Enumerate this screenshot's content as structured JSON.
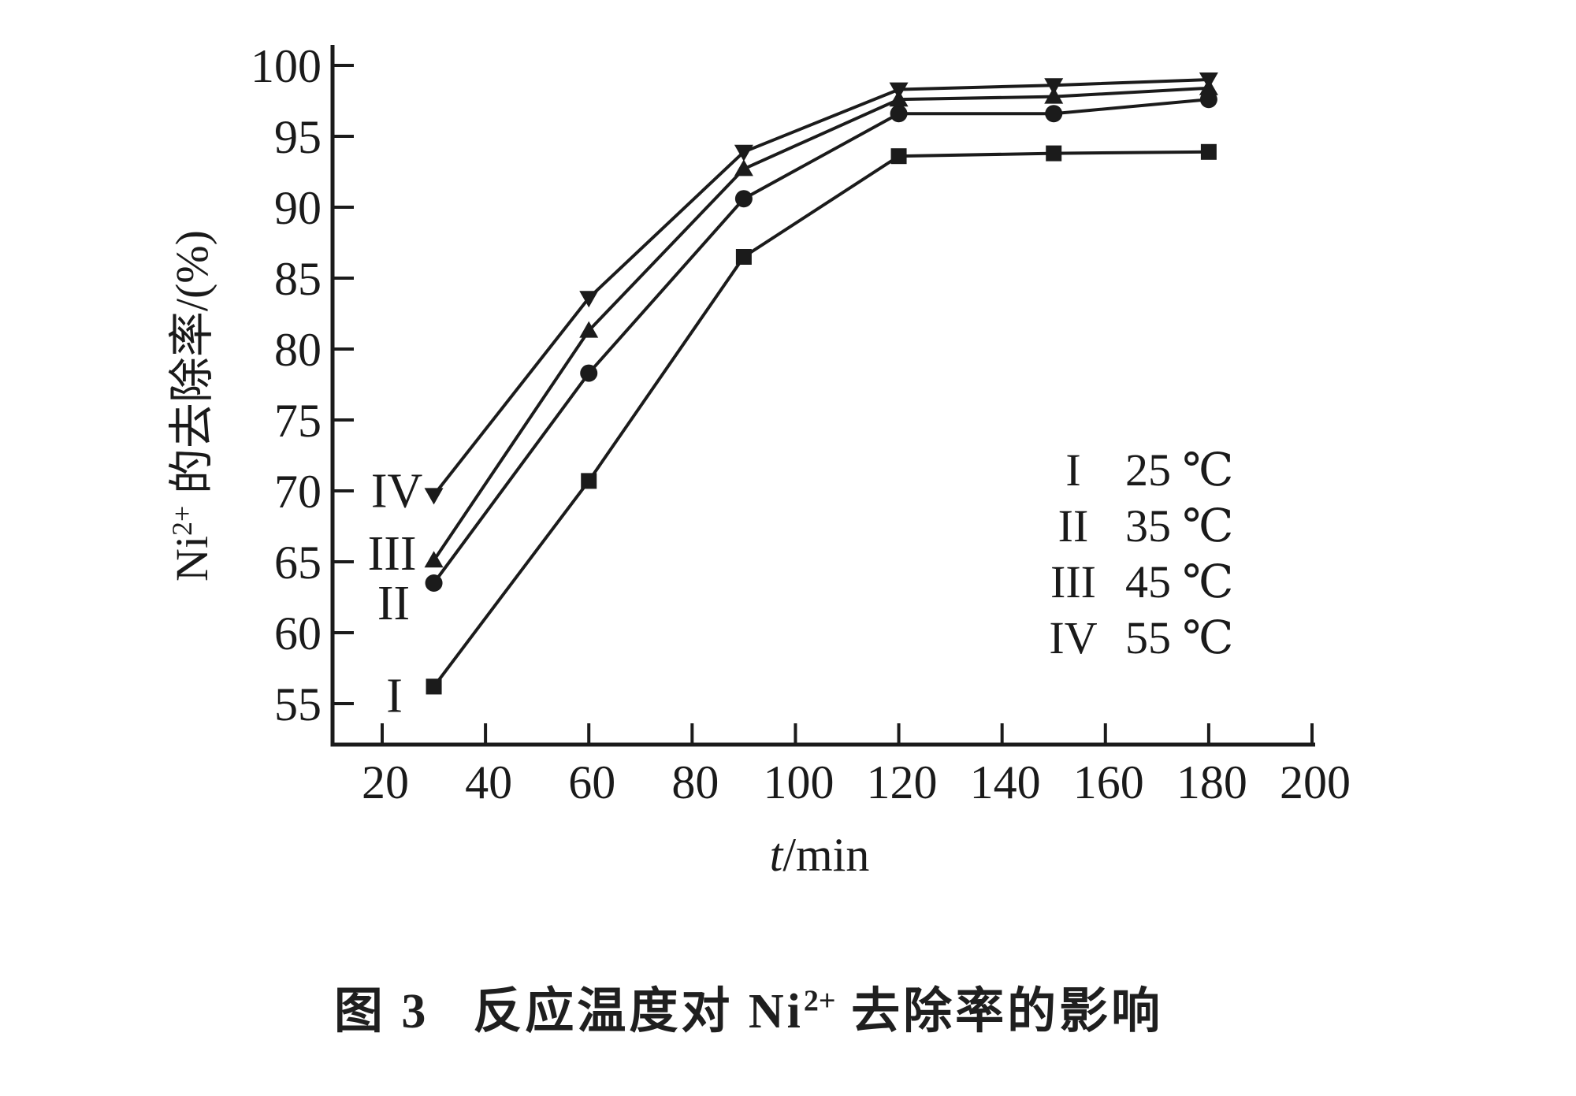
{
  "page": {
    "background": "#ffffff",
    "ink": "#1a1a1a"
  },
  "caption": {
    "figure_label": "图 3",
    "text_pre": "反应温度对 Ni",
    "sup": "2+",
    "text_post": " 去除率的影响"
  },
  "chart_data": {
    "type": "line",
    "title": "",
    "xlabel_parts": {
      "var": "t",
      "rest": "/min"
    },
    "ylabel_parts": {
      "pre": "Ni",
      "sup": "2+",
      "post": " 的去除率/(%)"
    },
    "x": [
      30,
      60,
      90,
      120,
      150,
      180
    ],
    "xticks": [
      20,
      40,
      60,
      80,
      100,
      120,
      140,
      160,
      180,
      200
    ],
    "yticks": [
      55,
      60,
      65,
      70,
      75,
      80,
      85,
      90,
      95,
      100
    ],
    "xlim": [
      10,
      201
    ],
    "ylim": [
      52,
      101.5
    ],
    "grid": false,
    "legend_position": "inside-right",
    "line_color": "#1b1b1b",
    "series": [
      {
        "label": "I",
        "temperature": "25 ℃",
        "marker": "square",
        "values": [
          56.2,
          70.7,
          86.5,
          93.6,
          93.8,
          93.9
        ]
      },
      {
        "label": "II",
        "temperature": "35 ℃",
        "marker": "circle",
        "values": [
          63.5,
          78.3,
          90.6,
          96.6,
          96.6,
          97.6
        ]
      },
      {
        "label": "III",
        "temperature": "45 ℃",
        "marker": "triangle-up",
        "values": [
          65.1,
          81.3,
          92.7,
          97.6,
          97.8,
          98.4
        ]
      },
      {
        "label": "IV",
        "temperature": "55 ℃",
        "marker": "triangle-down",
        "values": [
          69.7,
          83.6,
          93.9,
          98.3,
          98.6,
          99.0
        ]
      }
    ]
  }
}
